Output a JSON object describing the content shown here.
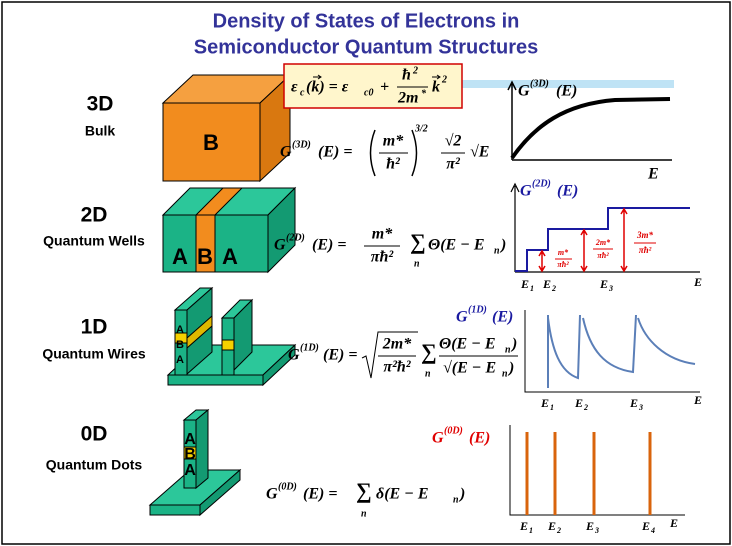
{
  "title": [
    "Density of States of Electrons in",
    "Semiconductor Quantum Structures"
  ],
  "rows": [
    {
      "dim": "3D",
      "name": "Bulk",
      "layers": [
        "B"
      ]
    },
    {
      "dim": "2D",
      "name": "Quantum Wells",
      "layers": [
        "A",
        "B",
        "A"
      ]
    },
    {
      "dim": "1D",
      "name": "Quantum Wires",
      "layers": [
        "A",
        "B",
        "A"
      ]
    },
    {
      "dim": "0D",
      "name": "Quantum Dots",
      "layers": [
        "A",
        "B",
        "A"
      ]
    }
  ],
  "dispersion": [
    "ε",
    "c",
    "(k) = ε",
    "c0",
    "+",
    "ħ",
    "2",
    "2m",
    "*",
    "k",
    "2"
  ],
  "formulas": {
    "d3": [
      "G",
      "(3D)",
      "(E) =",
      "m*",
      "ħ²",
      "3/2",
      "√2",
      "π²",
      "√E"
    ],
    "d2": [
      "G",
      "(2D)",
      "(E) =",
      "m*",
      "πħ²",
      "∑",
      "n",
      "Θ(E − E",
      "n",
      ")"
    ],
    "d1": [
      "G",
      "(1D)",
      "(E) =",
      "2m*",
      "π²ħ²",
      "∑",
      "n",
      "Θ(E − E",
      "n",
      ")",
      "√(E − E",
      "n",
      ")"
    ],
    "d0": [
      "G",
      "(0D)",
      "(E) =",
      "∑",
      "n",
      "δ(E − E",
      "n",
      ")"
    ]
  },
  "plots": {
    "d3": {
      "ylabel": [
        "G",
        "(3D)",
        "(E)"
      ],
      "xlabel": "E"
    },
    "d2": {
      "ylabel": [
        "G",
        "(2D)",
        "(E)"
      ],
      "xlabel": "E",
      "levels": [
        [
          "E",
          "1"
        ],
        [
          "E",
          "2"
        ],
        [
          "E",
          "3"
        ]
      ],
      "steps": [
        [
          "m*",
          "πħ²"
        ],
        [
          "2m*",
          "πħ²"
        ],
        [
          "3m*",
          "πħ²"
        ]
      ]
    },
    "d1": {
      "ylabel": [
        "G",
        "(1D)",
        "(E)"
      ],
      "xlabel": "E",
      "levels": [
        [
          "E",
          "1"
        ],
        [
          "E",
          "2"
        ],
        [
          "E",
          "3"
        ]
      ]
    },
    "d0": {
      "ylabel": [
        "G",
        "(0D)",
        "(E)"
      ],
      "xlabel": "E",
      "levels": [
        [
          "E",
          "1"
        ],
        [
          "E",
          "2"
        ],
        [
          "E",
          "3"
        ],
        [
          "E",
          "4"
        ]
      ]
    }
  }
}
